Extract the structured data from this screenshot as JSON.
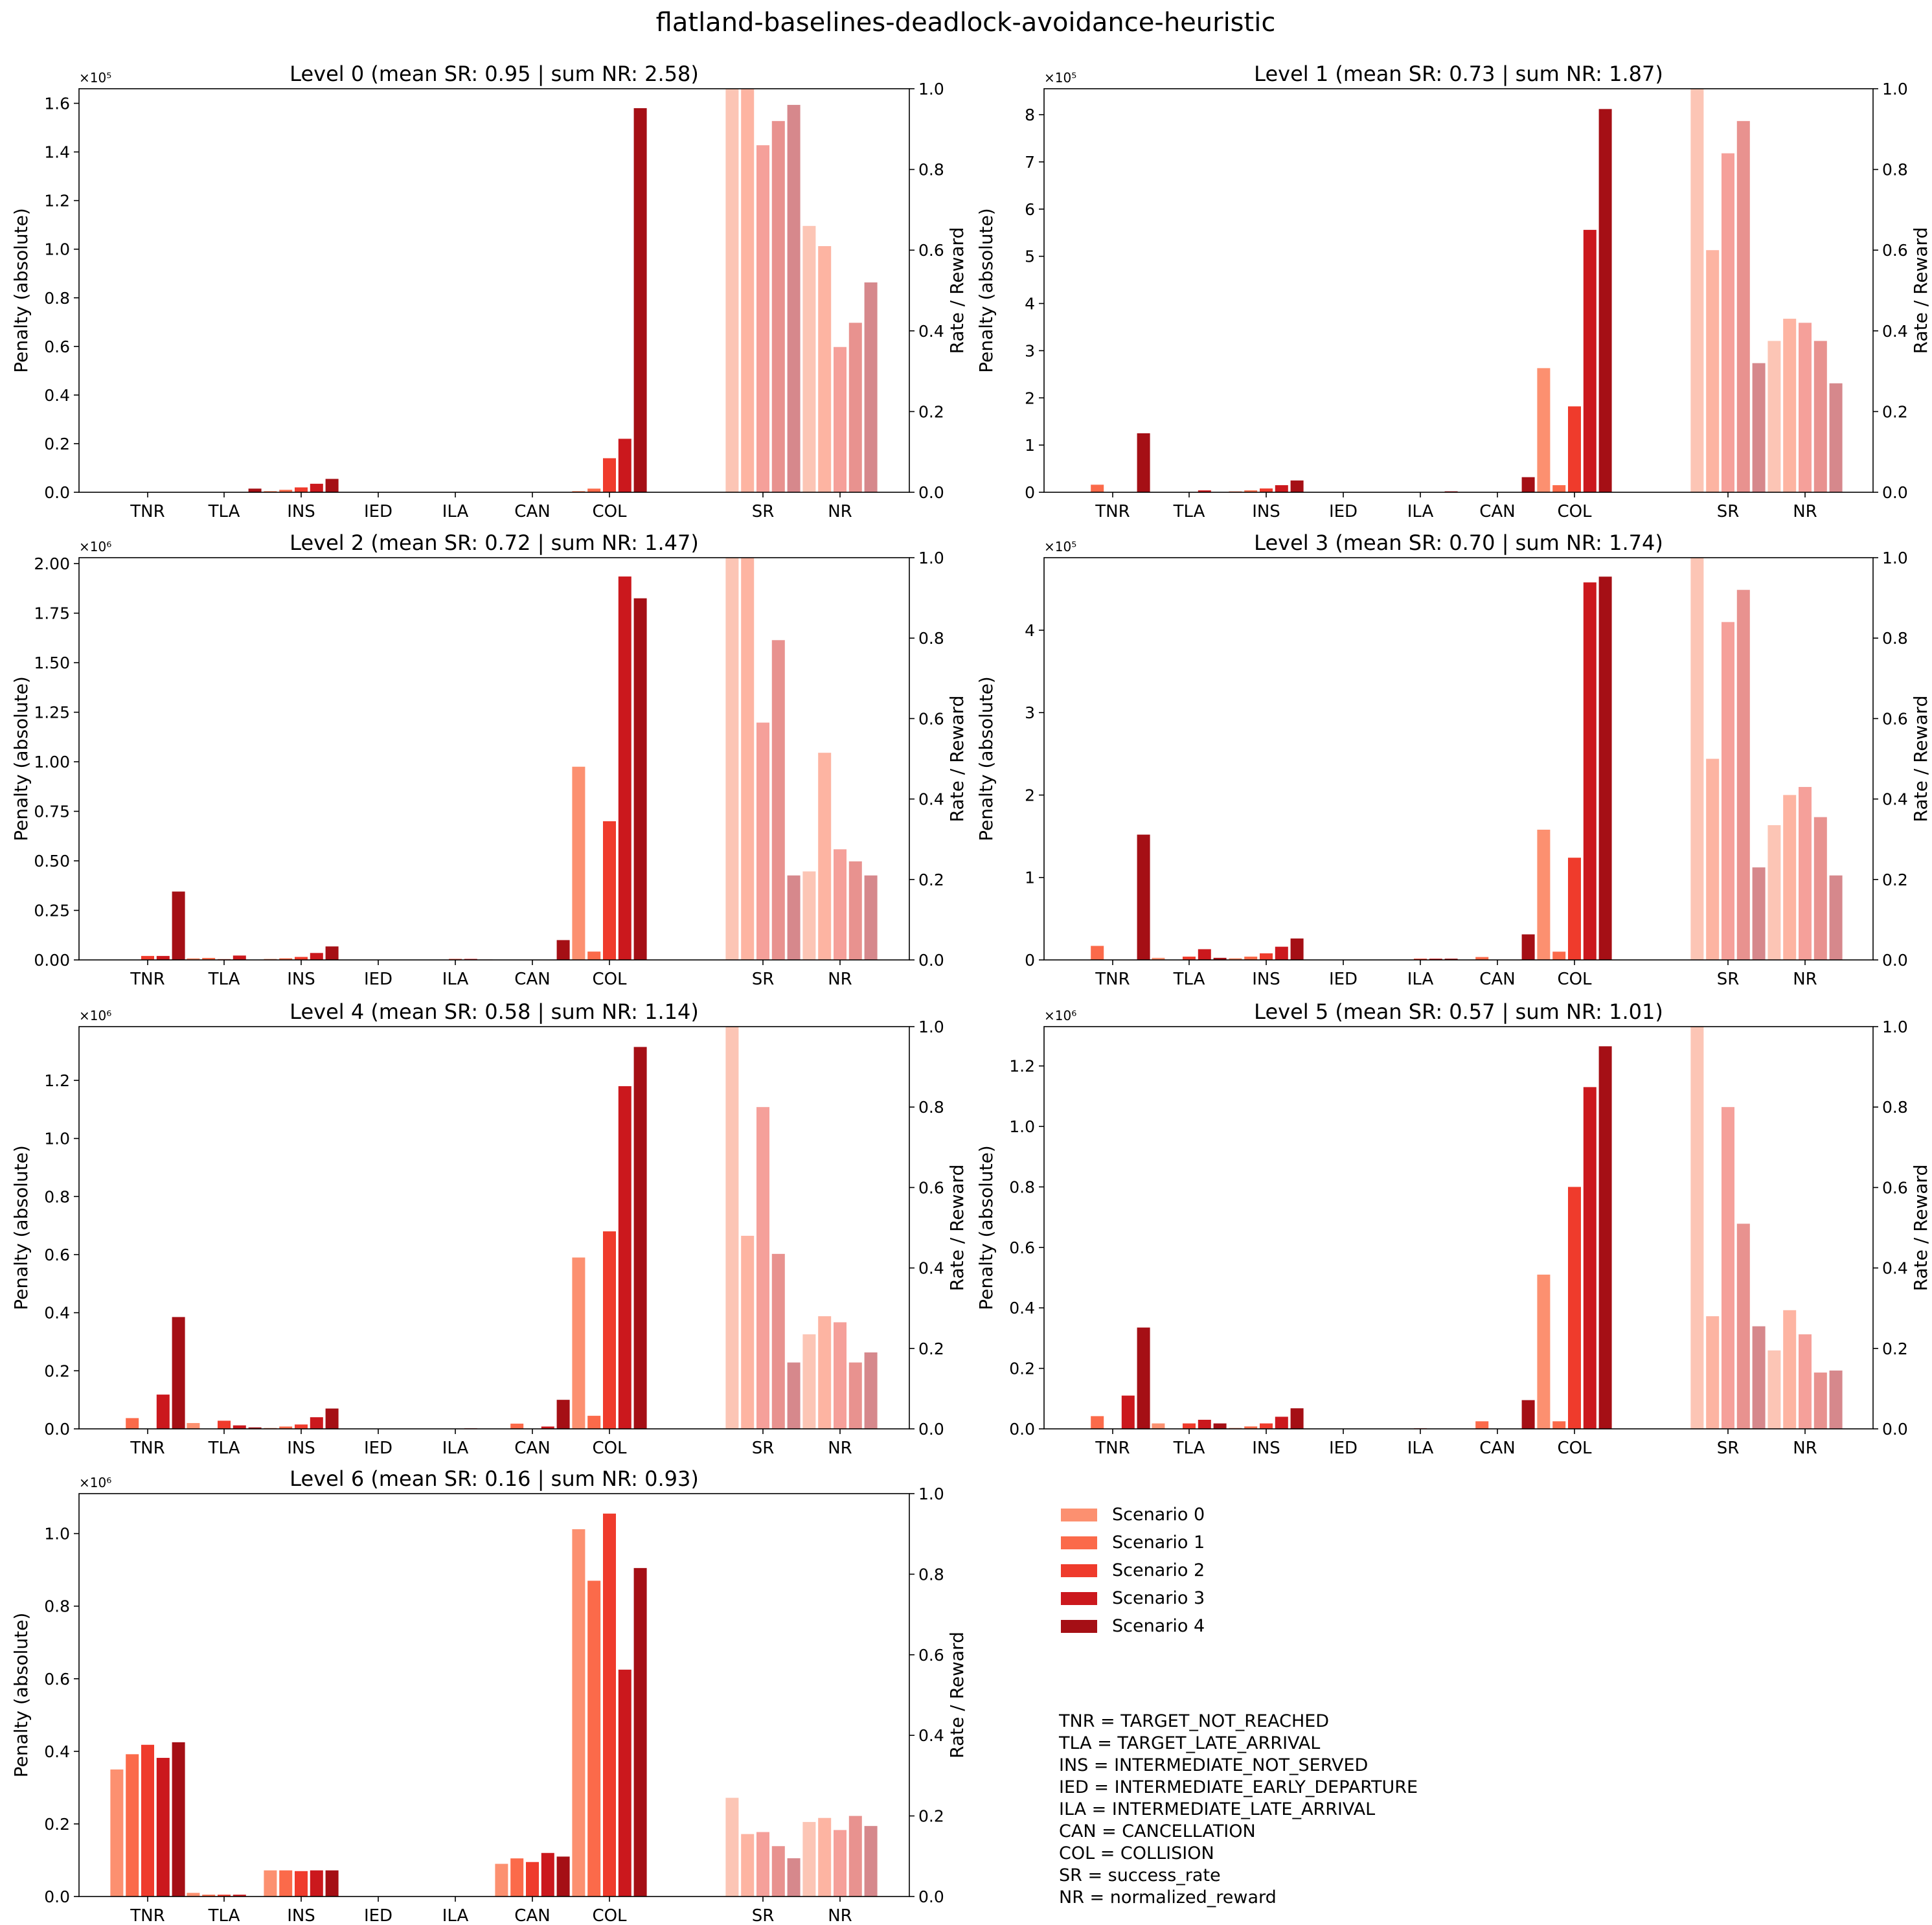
{
  "figure_title": "flatland-baselines-deadlock-avoidance-heuristic",
  "colors": {
    "scenarios": [
      "#fc9070",
      "#fb6a4a",
      "#ef3b2c",
      "#cb181d",
      "#a50f15"
    ],
    "rate_bars_faded": [
      "#fcc5b5",
      "#fdb4a2",
      "#f5a09a",
      "#e8928f",
      "#d6888c"
    ]
  },
  "legend": {
    "entries": [
      "Scenario 0",
      "Scenario 1",
      "Scenario 2",
      "Scenario 3",
      "Scenario 4"
    ]
  },
  "abbreviations": [
    "TNR = TARGET_NOT_REACHED",
    "TLA = TARGET_LATE_ARRIVAL",
    "INS = INTERMEDIATE_NOT_SERVED",
    "IED = INTERMEDIATE_EARLY_DEPARTURE",
    "ILA = INTERMEDIATE_LATE_ARRIVAL",
    "CAN = CANCELLATION",
    "COL = COLLISION",
    "SR = success_rate",
    "NR = normalized_reward"
  ],
  "chart_data": [
    {
      "type": "bar",
      "title": "Level 0 (mean SR: 0.95 | sum NR: 2.58)",
      "ylabel": "Penalty (absolute)",
      "y2label": "Rate / Reward",
      "penalty_categories": [
        "TNR",
        "TLA",
        "INS",
        "IED",
        "ILA",
        "CAN",
        "COL"
      ],
      "rate_categories": [
        "SR",
        "NR"
      ],
      "multiplier_label": "×10⁵",
      "multiplier": 100000,
      "ylim": [
        0,
        166000
      ],
      "yticks": [
        0,
        20000,
        40000,
        60000,
        80000,
        100000,
        120000,
        140000,
        160000
      ],
      "ytick_labels": [
        "0.0",
        "0.2",
        "0.4",
        "0.6",
        "0.8",
        "1.0",
        "1.2",
        "1.4",
        "1.6"
      ],
      "y2lim": [
        0,
        1
      ],
      "y2ticks": [
        "0.0",
        "0.2",
        "0.4",
        "0.6",
        "0.8",
        "1.0"
      ],
      "penalties": [
        [
          0,
          0,
          0,
          0,
          0
        ],
        [
          0,
          0,
          0,
          0,
          1500
        ],
        [
          500,
          1000,
          2000,
          3500,
          5500
        ],
        [
          0,
          0,
          0,
          0,
          0
        ],
        [
          0,
          0,
          0,
          0,
          0
        ],
        [
          0,
          0,
          0,
          0,
          0
        ],
        [
          500,
          1500,
          14000,
          22000,
          158000
        ]
      ],
      "rates": [
        [
          1.0,
          1.0,
          0.86,
          0.92,
          0.96
        ],
        [
          0.66,
          0.61,
          0.36,
          0.42,
          0.52
        ]
      ]
    },
    {
      "type": "bar",
      "title": "Level 1 (mean SR: 0.73 | sum NR: 1.87)",
      "ylabel": "Penalty (absolute)",
      "y2label": "Rate / Reward",
      "penalty_categories": [
        "TNR",
        "TLA",
        "INS",
        "IED",
        "ILA",
        "CAN",
        "COL"
      ],
      "rate_categories": [
        "SR",
        "NR"
      ],
      "multiplier_label": "×10⁵",
      "multiplier": 100000,
      "ylim": [
        0,
        855000
      ],
      "yticks": [
        0,
        100000,
        200000,
        300000,
        400000,
        500000,
        600000,
        700000,
        800000
      ],
      "ytick_labels": [
        "0",
        "1",
        "2",
        "3",
        "4",
        "5",
        "6",
        "7",
        "8"
      ],
      "y2lim": [
        0,
        1
      ],
      "y2ticks": [
        "0.0",
        "0.2",
        "0.4",
        "0.6",
        "0.8",
        "1.0"
      ],
      "penalties": [
        [
          0,
          16000,
          0,
          0,
          125000
        ],
        [
          0,
          0,
          0,
          4000,
          0
        ],
        [
          2000,
          4000,
          8000,
          15000,
          25000
        ],
        [
          0,
          0,
          0,
          0,
          0
        ],
        [
          0,
          0,
          0,
          0,
          2000
        ],
        [
          0,
          0,
          0,
          0,
          32000
        ],
        [
          263000,
          15000,
          182000,
          556000,
          812000
        ]
      ],
      "rates": [
        [
          1.0,
          0.6,
          0.84,
          0.92,
          0.32
        ],
        [
          0.375,
          0.43,
          0.42,
          0.375,
          0.27
        ]
      ]
    },
    {
      "type": "bar",
      "title": "Level 2 (mean SR: 0.72 | sum NR: 1.47)",
      "ylabel": "Penalty (absolute)",
      "y2label": "Rate / Reward",
      "penalty_categories": [
        "TNR",
        "TLA",
        "INS",
        "IED",
        "ILA",
        "CAN",
        "COL"
      ],
      "rate_categories": [
        "SR",
        "NR"
      ],
      "multiplier_label": "×10⁶",
      "multiplier": 1000000,
      "ylim": [
        0,
        2030000
      ],
      "yticks": [
        0,
        250000,
        500000,
        750000,
        1000000,
        1250000,
        1500000,
        1750000,
        2000000
      ],
      "ytick_labels": [
        "0.00",
        "0.25",
        "0.50",
        "0.75",
        "1.00",
        "1.25",
        "1.50",
        "1.75",
        "2.00"
      ],
      "y2lim": [
        0,
        1
      ],
      "y2ticks": [
        "0.0",
        "0.2",
        "0.4",
        "0.6",
        "0.8",
        "1.0"
      ],
      "penalties": [
        [
          0,
          0,
          20000,
          20000,
          345000
        ],
        [
          8000,
          10000,
          4000,
          22000,
          0
        ],
        [
          5000,
          8000,
          15000,
          35000,
          68000
        ],
        [
          0,
          0,
          0,
          0,
          0
        ],
        [
          0,
          0,
          5000,
          5000,
          2000
        ],
        [
          0,
          0,
          0,
          0,
          100000
        ],
        [
          975000,
          42000,
          700000,
          1935000,
          1825000
        ]
      ],
      "rates": [
        [
          1.0,
          1.0,
          0.59,
          0.795,
          0.21
        ],
        [
          0.22,
          0.515,
          0.275,
          0.245,
          0.21
        ]
      ]
    },
    {
      "type": "bar",
      "title": "Level 3 (mean SR: 0.70 | sum NR: 1.74)",
      "ylabel": "Penalty (absolute)",
      "y2label": "Rate / Reward",
      "penalty_categories": [
        "TNR",
        "TLA",
        "INS",
        "IED",
        "ILA",
        "CAN",
        "COL"
      ],
      "rate_categories": [
        "SR",
        "NR"
      ],
      "multiplier_label": "×10⁵",
      "multiplier": 100000,
      "ylim": [
        0,
        488000
      ],
      "yticks": [
        0,
        100000,
        200000,
        300000,
        400000
      ],
      "ytick_labels": [
        "0",
        "1",
        "2",
        "3",
        "4"
      ],
      "y2lim": [
        0,
        1
      ],
      "y2ticks": [
        "0.0",
        "0.2",
        "0.4",
        "0.6",
        "0.8",
        "1.0"
      ],
      "penalties": [
        [
          0,
          17000,
          0,
          0,
          152000
        ],
        [
          2500,
          0,
          4000,
          13000,
          2500
        ],
        [
          2000,
          4000,
          8000,
          16000,
          26000
        ],
        [
          0,
          0,
          0,
          0,
          0
        ],
        [
          0,
          0,
          1500,
          1500,
          1500
        ],
        [
          0,
          3500,
          0,
          0,
          31000
        ],
        [
          158000,
          10000,
          124000,
          458000,
          465000
        ]
      ],
      "rates": [
        [
          1.0,
          0.5,
          0.84,
          0.92,
          0.23
        ],
        [
          0.335,
          0.41,
          0.43,
          0.355,
          0.21
        ]
      ]
    },
    {
      "type": "bar",
      "title": "Level 4 (mean SR: 0.58 | sum NR: 1.14)",
      "ylabel": "Penalty (absolute)",
      "y2label": "Rate / Reward",
      "penalty_categories": [
        "TNR",
        "TLA",
        "INS",
        "IED",
        "ILA",
        "CAN",
        "COL"
      ],
      "rate_categories": [
        "SR",
        "NR"
      ],
      "multiplier_label": "×10⁶",
      "multiplier": 1000000,
      "ylim": [
        0,
        1385000
      ],
      "yticks": [
        0,
        200000,
        400000,
        600000,
        800000,
        1000000,
        1200000
      ],
      "ytick_labels": [
        "0.0",
        "0.2",
        "0.4",
        "0.6",
        "0.8",
        "1.0",
        "1.2"
      ],
      "y2lim": [
        0,
        1
      ],
      "y2ticks": [
        "0.0",
        "0.2",
        "0.4",
        "0.6",
        "0.8",
        "1.0"
      ],
      "penalties": [
        [
          0,
          37000,
          0,
          118000,
          385000
        ],
        [
          20000,
          0,
          28000,
          12000,
          5000
        ],
        [
          3000,
          8000,
          15000,
          40000,
          70000
        ],
        [
          0,
          0,
          0,
          0,
          0
        ],
        [
          0,
          0,
          0,
          2000,
          0
        ],
        [
          0,
          18000,
          0,
          8000,
          100000
        ],
        [
          590000,
          45000,
          680000,
          1180000,
          1315000
        ]
      ],
      "rates": [
        [
          1.0,
          0.48,
          0.8,
          0.435,
          0.165
        ],
        [
          0.235,
          0.28,
          0.265,
          0.165,
          0.19
        ]
      ]
    },
    {
      "type": "bar",
      "title": "Level 5 (mean SR: 0.57 | sum NR: 1.01)",
      "ylabel": "Penalty (absolute)",
      "y2label": "Rate / Reward",
      "penalty_categories": [
        "TNR",
        "TLA",
        "INS",
        "IED",
        "ILA",
        "CAN",
        "COL"
      ],
      "rate_categories": [
        "SR",
        "NR"
      ],
      "multiplier_label": "×10⁶",
      "multiplier": 1000000,
      "ylim": [
        0,
        1330000
      ],
      "yticks": [
        0,
        200000,
        400000,
        600000,
        800000,
        1000000,
        1200000
      ],
      "ytick_labels": [
        "0.0",
        "0.2",
        "0.4",
        "0.6",
        "0.8",
        "1.0",
        "1.2"
      ],
      "y2lim": [
        0,
        1
      ],
      "y2ticks": [
        "0.0",
        "0.2",
        "0.4",
        "0.6",
        "0.8",
        "1.0"
      ],
      "penalties": [
        [
          0,
          42000,
          0,
          110000,
          335000
        ],
        [
          18000,
          0,
          18000,
          30000,
          18000
        ],
        [
          3000,
          8000,
          18000,
          40000,
          68000
        ],
        [
          0,
          0,
          0,
          0,
          0
        ],
        [
          0,
          0,
          2000,
          0,
          0
        ],
        [
          0,
          25000,
          0,
          0,
          95000
        ],
        [
          510000,
          25000,
          800000,
          1130000,
          1265000
        ]
      ],
      "rates": [
        [
          1.0,
          0.28,
          0.8,
          0.51,
          0.255
        ],
        [
          0.195,
          0.295,
          0.235,
          0.14,
          0.145
        ]
      ]
    },
    {
      "type": "bar",
      "title": "Level 6 (mean SR: 0.16 | sum NR: 0.93)",
      "ylabel": "Penalty (absolute)",
      "y2label": "Rate / Reward",
      "penalty_categories": [
        "TNR",
        "TLA",
        "INS",
        "IED",
        "ILA",
        "CAN",
        "COL"
      ],
      "rate_categories": [
        "SR",
        "NR"
      ],
      "multiplier_label": "×10⁶",
      "multiplier": 1000000,
      "ylim": [
        0,
        1110000
      ],
      "yticks": [
        0,
        200000,
        400000,
        600000,
        800000,
        1000000
      ],
      "ytick_labels": [
        "0.0",
        "0.2",
        "0.4",
        "0.6",
        "0.8",
        "1.0"
      ],
      "y2lim": [
        0,
        1
      ],
      "y2ticks": [
        "0.0",
        "0.2",
        "0.4",
        "0.6",
        "0.8",
        "1.0"
      ],
      "penalties": [
        [
          350000,
          392000,
          418000,
          382000,
          425000
        ],
        [
          10000,
          5000,
          5000,
          5000,
          0
        ],
        [
          72000,
          72000,
          70000,
          72000,
          72000
        ],
        [
          0,
          0,
          0,
          0,
          0
        ],
        [
          0,
          0,
          0,
          0,
          0
        ],
        [
          90000,
          105000,
          95000,
          120000,
          110000
        ],
        [
          1012000,
          870000,
          1055000,
          625000,
          905000
        ]
      ],
      "rates": [
        [
          0.245,
          0.155,
          0.16,
          0.125,
          0.095
        ],
        [
          0.185,
          0.195,
          0.165,
          0.2,
          0.175
        ]
      ]
    }
  ]
}
